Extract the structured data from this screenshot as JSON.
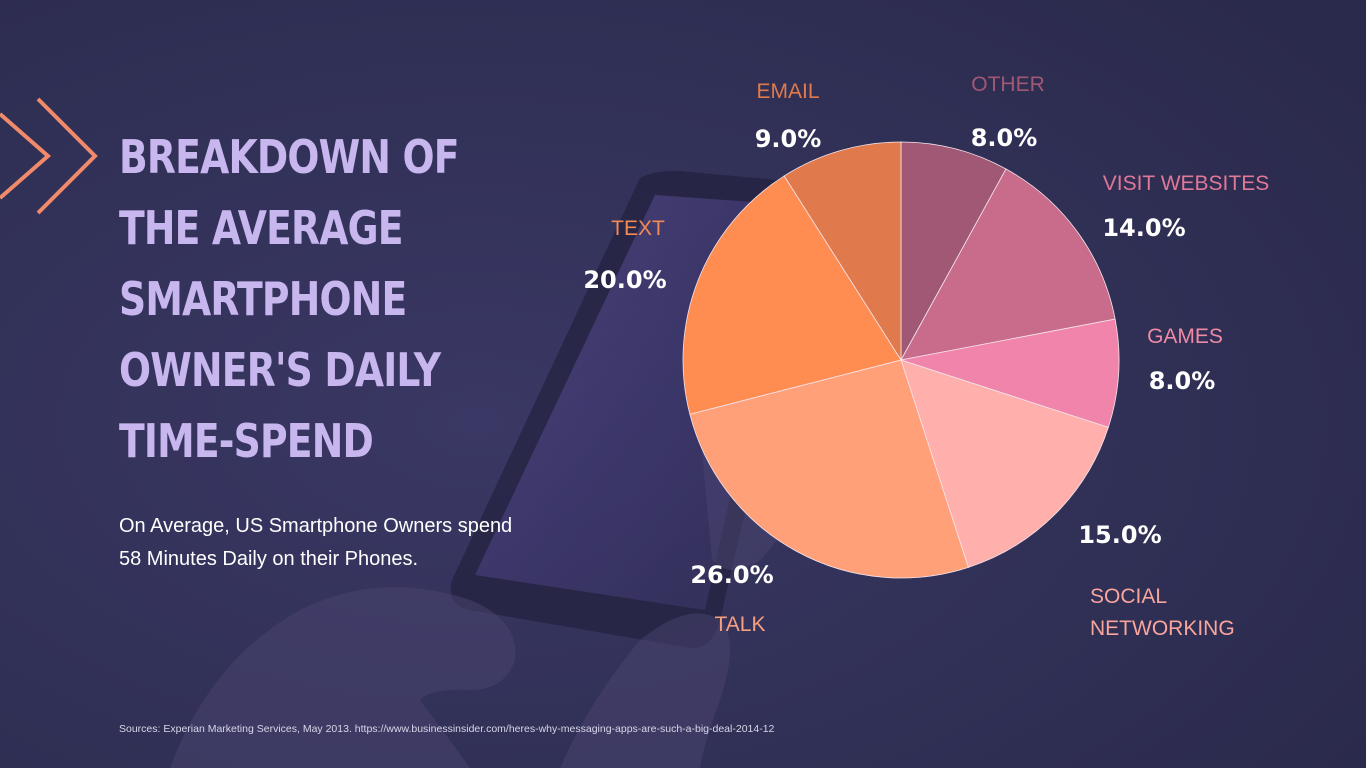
{
  "title_lines": [
    "Breakdown of",
    "the Average",
    "Smartphone",
    "Owner's Daily",
    "Time-Spend"
  ],
  "subtitle_lines": [
    "On Average, US Smartphone Owners spend",
    "58 Minutes Daily on their Phones."
  ],
  "source": "Sources: Experian Marketing Services, May 2013. https://www.businessinsider.com/heres-why-messaging-apps-are-such-a-big-deal-2014-12",
  "colors": {
    "background": "#2e2d52",
    "title": "#c8b6ee",
    "accent_chevron": "#f08a6a"
  },
  "chart_data": {
    "type": "pie",
    "start_angle_deg": 0,
    "direction": "clockwise",
    "slices": [
      {
        "label": "OTHER",
        "value": 8.0,
        "value_label": "8.0%",
        "color": "#a15874",
        "label_color": "#a15874"
      },
      {
        "label": "VISIT WEBSITES",
        "value": 14.0,
        "value_label": "14.0%",
        "color": "#c96c8c",
        "label_color": "#e07898"
      },
      {
        "label": "GAMES",
        "value": 8.0,
        "value_label": "8.0%",
        "color": "#f084aa",
        "label_color": "#f08aa4"
      },
      {
        "label": "SOCIAL NETWORKING",
        "label_lines": [
          "SOCIAL",
          "NETWORKING"
        ],
        "value": 15.0,
        "value_label": "15.0%",
        "color": "#ffb0ac",
        "label_color": "#f8a59c"
      },
      {
        "label": "TALK",
        "value": 26.0,
        "value_label": "26.0%",
        "color": "#ffa078",
        "label_color": "#f7a080"
      },
      {
        "label": "TEXT",
        "value": 20.0,
        "value_label": "20.0%",
        "color": "#ff8c50",
        "label_color": "#f28a56"
      },
      {
        "label": "EMAIL",
        "value": 9.0,
        "value_label": "9.0%",
        "color": "#e07a4c",
        "label_color": "#e07a4a"
      }
    ]
  }
}
